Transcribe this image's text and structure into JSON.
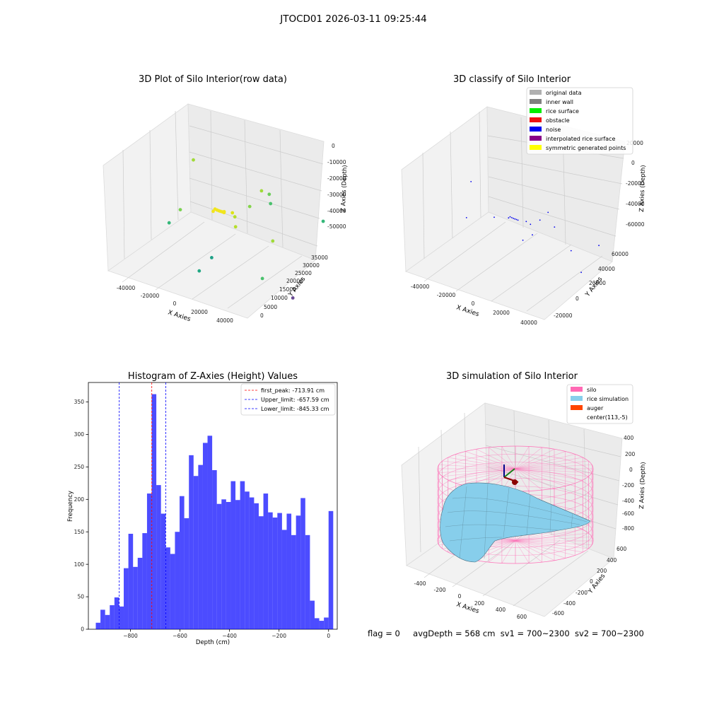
{
  "figure": {
    "suptitle": "JTOCD01 2026-03-11 09:25:44"
  },
  "panel_rowdata": {
    "title": "3D Plot of Silo Interior(row data)",
    "xlabel": "X Axies",
    "ylabel": "Y Axies",
    "zlabel": "Z Axies (Depth)",
    "x_ticks": [
      "-40000",
      "-20000",
      "0",
      "20000",
      "40000"
    ],
    "y_ticks": [
      "0",
      "5000",
      "10000",
      "15000",
      "20000",
      "25000",
      "30000",
      "35000"
    ],
    "z_ticks": [
      "0",
      "-10000",
      "-20000",
      "-30000",
      "-40000",
      "-50000"
    ]
  },
  "panel_classify": {
    "title": "3D classify of Silo Interior",
    "xlabel": "X Axies",
    "ylabel": "Y Axies",
    "zlabel": "Z Axies (Depth)",
    "x_ticks": [
      "-40000",
      "-20000",
      "0",
      "20000",
      "40000"
    ],
    "y_ticks": [
      "-20000",
      "0",
      "20000",
      "40000",
      "60000"
    ],
    "z_ticks": [
      "20000",
      "0",
      "-20000",
      "-40000",
      "-60000"
    ],
    "legend": [
      {
        "label": "original data",
        "color": "#b0b0b0"
      },
      {
        "label": "inner wall",
        "color": "#808080"
      },
      {
        "label": "rice surface",
        "color": "#00ee00"
      },
      {
        "label": "obstacle",
        "color": "#ee1111"
      },
      {
        "label": "noise",
        "color": "#0000ee"
      },
      {
        "label": "interpolated rice surface",
        "color": "#880088"
      },
      {
        "label": "symmetric generated points",
        "color": "#ffff00"
      }
    ]
  },
  "panel_simulation": {
    "title": "3D simulation of Silo Interior",
    "xlabel": "X Axies",
    "ylabel": "Y Axies",
    "zlabel": "Z Axies (Depth)",
    "x_ticks": [
      "-400",
      "-200",
      "0",
      "200",
      "400",
      "600"
    ],
    "y_ticks": [
      "-600",
      "-400",
      "-200",
      "0",
      "200",
      "400",
      "600"
    ],
    "z_ticks": [
      "400",
      "200",
      "0",
      "-200",
      "-400",
      "-600",
      "-800"
    ],
    "legend": [
      {
        "label": "silo",
        "color": "#ff69b4"
      },
      {
        "label": "rice simulation",
        "color": "#87ceeb"
      },
      {
        "label": "auger",
        "color": "#ff4500"
      },
      {
        "label": "center(113,-5)",
        "color": ""
      }
    ]
  },
  "status": {
    "flag": "flag = 0",
    "avg_depth": "avgDepth = 568 cm",
    "sv1": "sv1 = 700~2300",
    "sv2": "sv2 = 700~2300"
  },
  "chart_data": [
    {
      "type": "scatter",
      "title": "3D Plot of Silo Interior(row data)",
      "xlabel": "X Axies",
      "ylabel": "Y Axies",
      "zlabel": "Z Axies (Depth)",
      "xlim": [
        -50000,
        50000
      ],
      "ylim": [
        0,
        40000
      ],
      "zlim": [
        -55000,
        2000
      ],
      "points": [
        {
          "x": -3000,
          "y": 20000,
          "z": -26000,
          "color": "#f1e51d"
        },
        {
          "x": -2000,
          "y": 20300,
          "z": -26500,
          "color": "#f1e51d"
        },
        {
          "x": -1000,
          "y": 20500,
          "z": -26800,
          "color": "#f1e51d"
        },
        {
          "x": 0,
          "y": 20700,
          "z": -27000,
          "color": "#f1e51d"
        },
        {
          "x": 1000,
          "y": 20900,
          "z": -27200,
          "color": "#f1e51d"
        },
        {
          "x": 2000,
          "y": 21000,
          "z": -27400,
          "color": "#f1e51d"
        },
        {
          "x": -4000,
          "y": 19800,
          "z": -27300,
          "color": "#f1e51d"
        },
        {
          "x": 3000,
          "y": 20400,
          "z": -26200,
          "color": "#f1e51d"
        },
        {
          "x": 8000,
          "y": 21000,
          "z": -26000,
          "color": "#dde318"
        },
        {
          "x": 12000,
          "y": 19500,
          "z": -26000,
          "color": "#b5de2b"
        },
        {
          "x": 14000,
          "y": 18500,
          "z": -30000,
          "color": "#b5de2b"
        },
        {
          "x": 16000,
          "y": 24000,
          "z": -23000,
          "color": "#84d44b"
        },
        {
          "x": 20000,
          "y": 27000,
          "z": -16000,
          "color": "#a0da39"
        },
        {
          "x": -20000,
          "y": 21000,
          "z": -5000,
          "color": "#a0da39"
        },
        {
          "x": -22000,
          "y": 16000,
          "z": -28000,
          "color": "#7ad151"
        },
        {
          "x": -30000,
          "y": 16000,
          "z": -37000,
          "color": "#35b779"
        },
        {
          "x": 30000,
          "y": 24000,
          "z": -13000,
          "color": "#6ccd5a"
        },
        {
          "x": 28000,
          "y": 26000,
          "z": -20000,
          "color": "#4ac16d"
        },
        {
          "x": 34000,
          "y": 23000,
          "z": -36000,
          "color": "#a0da39"
        },
        {
          "x": 45000,
          "y": 40000,
          "z": -36000,
          "color": "#35b779"
        },
        {
          "x": 8000,
          "y": 11000,
          "z": -42000,
          "color": "#1fa187"
        },
        {
          "x": 2000,
          "y": 9000,
          "z": -49000,
          "color": "#22a884"
        },
        {
          "x": 34000,
          "y": 18000,
          "z": -52000,
          "color": "#4ac16d"
        },
        {
          "x": 44000,
          "y": 26000,
          "z": -66000,
          "color": "#6a4c93"
        }
      ]
    },
    {
      "type": "scatter",
      "title": "3D classify of Silo Interior",
      "xlabel": "X Axies",
      "ylabel": "Y Axies",
      "zlabel": "Z Axies (Depth)",
      "xlim": [
        -50000,
        50000
      ],
      "ylim": [
        -25000,
        70000
      ],
      "zlim": [
        -70000,
        25000
      ],
      "series": [
        {
          "name": "noise",
          "color": "#0000ee",
          "points": [
            {
              "x": -3000,
              "y": 20000,
              "z": -26000
            },
            {
              "x": -2000,
              "y": 20300,
              "z": -26500
            },
            {
              "x": -1000,
              "y": 20500,
              "z": -26800
            },
            {
              "x": 0,
              "y": 20700,
              "z": -27000
            },
            {
              "x": 1000,
              "y": 20900,
              "z": -27200
            },
            {
              "x": 2000,
              "y": 21000,
              "z": -27400
            },
            {
              "x": -4000,
              "y": 19800,
              "z": -27300
            },
            {
              "x": -12000,
              "y": 16000,
              "z": -28000
            },
            {
              "x": 8000,
              "y": 21000,
              "z": -26000
            },
            {
              "x": 12000,
              "y": 19500,
              "z": -26000
            },
            {
              "x": 16000,
              "y": 24000,
              "z": -23000
            },
            {
              "x": 20000,
              "y": 27000,
              "z": -16000
            },
            {
              "x": -30000,
              "y": 18000,
              "z": -5000
            },
            {
              "x": -32000,
              "y": 16000,
              "z": -37000
            },
            {
              "x": 24000,
              "y": 28000,
              "z": -28000
            },
            {
              "x": 14000,
              "y": 18500,
              "z": -34000
            },
            {
              "x": 10000,
              "y": 14000,
              "z": -38000
            },
            {
              "x": 36000,
              "y": 28000,
              "z": -44000
            },
            {
              "x": 46000,
              "y": 44000,
              "z": -44000
            },
            {
              "x": 42000,
              "y": 30000,
              "z": -62000
            }
          ]
        }
      ]
    },
    {
      "type": "histogram",
      "title": "Histogram of Z-Axies (Height) Values",
      "xlabel": "Depth (cm)",
      "ylabel": "Frequency",
      "xlim": [
        -970,
        35
      ],
      "ylim": [
        0,
        380
      ],
      "x_ticks": [
        -800,
        -600,
        -400,
        -200,
        0
      ],
      "y_ticks": [
        0,
        50,
        100,
        150,
        200,
        250,
        300,
        350
      ],
      "bin_start": -940,
      "bin_width": 18.8,
      "bar_color": "#0000ff",
      "values": [
        10,
        30,
        22,
        37,
        49,
        35,
        94,
        147,
        96,
        110,
        148,
        209,
        362,
        222,
        178,
        126,
        116,
        150,
        205,
        171,
        268,
        236,
        253,
        287,
        298,
        245,
        193,
        200,
        196,
        228,
        199,
        228,
        212,
        203,
        194,
        174,
        209,
        180,
        172,
        179,
        153,
        178,
        145,
        175,
        202,
        145,
        44,
        17,
        13,
        18,
        182
      ],
      "vlines": [
        {
          "label": "first_peak: -713.91 cm",
          "x": -713.91,
          "color": "#ff0000"
        },
        {
          "label": "Upper_limit: -657.59 cm",
          "x": -657.59,
          "color": "#0000ff"
        },
        {
          "label": "Lower_limit: -845.33 cm",
          "x": -845.33,
          "color": "#0000ff"
        }
      ],
      "legend_position": "top-right"
    },
    {
      "type": "surface",
      "title": "3D simulation of Silo Interior",
      "xlabel": "X Axies",
      "ylabel": "Y Axies",
      "zlabel": "Z Axies (Depth)",
      "xlim": [
        -500,
        700
      ],
      "ylim": [
        -700,
        700
      ],
      "zlim": [
        -900,
        450
      ],
      "silo": {
        "center_x": 113,
        "center_y": -5,
        "radius": 600,
        "z_top": 0,
        "z_bottom": -900,
        "color": "#ff69b4"
      },
      "rice_surface_depth_range": [
        -800,
        -250
      ],
      "series": [
        {
          "name": "silo",
          "color": "#ff69b4"
        },
        {
          "name": "rice simulation",
          "color": "#87ceeb"
        },
        {
          "name": "auger",
          "color": "#ff4500"
        }
      ]
    }
  ]
}
